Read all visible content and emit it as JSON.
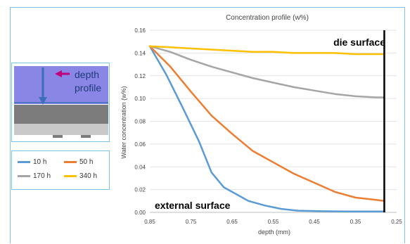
{
  "chart_data": {
    "type": "line",
    "title": "Concentration profile (w%)",
    "xlabel": "depth (mm)",
    "ylabel": "Water concentration (w%)",
    "xlim": [
      0.85,
      0.25
    ],
    "ylim": [
      0,
      0.16
    ],
    "x_ticks": [
      "0.85",
      "0.75",
      "0.65",
      "0.55",
      "0.45",
      "0.35",
      "0.25"
    ],
    "y_ticks": [
      "0.00",
      "0.02",
      "0.04",
      "0.06",
      "0.08",
      "0.10",
      "0.12",
      "0.14",
      "0.16"
    ],
    "grid": "horizontal",
    "annotations": {
      "top": "die surface",
      "bottom": "external surface"
    },
    "series": [
      {
        "name": "10 h",
        "color": "#5b9bd5",
        "x": [
          0.85,
          0.81,
          0.77,
          0.73,
          0.7,
          0.67,
          0.64,
          0.61,
          0.57,
          0.53,
          0.49,
          0.43,
          0.37,
          0.28
        ],
        "y": [
          0.146,
          0.121,
          0.092,
          0.062,
          0.035,
          0.022,
          0.016,
          0.01,
          0.006,
          0.003,
          0.0015,
          0.001,
          0.0008,
          0.0008
        ]
      },
      {
        "name": "50 h",
        "color": "#ed7d31",
        "x": [
          0.85,
          0.8,
          0.75,
          0.7,
          0.65,
          0.6,
          0.55,
          0.5,
          0.45,
          0.4,
          0.35,
          0.3,
          0.28
        ],
        "y": [
          0.146,
          0.128,
          0.106,
          0.085,
          0.069,
          0.054,
          0.044,
          0.034,
          0.026,
          0.018,
          0.013,
          0.011,
          0.01
        ]
      },
      {
        "name": "170 h",
        "color": "#a5a5a5",
        "x": [
          0.85,
          0.8,
          0.75,
          0.7,
          0.65,
          0.6,
          0.55,
          0.5,
          0.45,
          0.4,
          0.35,
          0.3,
          0.28
        ],
        "y": [
          0.146,
          0.141,
          0.134,
          0.128,
          0.123,
          0.118,
          0.114,
          0.11,
          0.107,
          0.104,
          0.102,
          0.101,
          0.101
        ]
      },
      {
        "name": "340 h",
        "color": "#ffc000",
        "x": [
          0.85,
          0.8,
          0.75,
          0.7,
          0.65,
          0.6,
          0.55,
          0.5,
          0.45,
          0.4,
          0.35,
          0.3,
          0.28
        ],
        "y": [
          0.146,
          0.145,
          0.144,
          0.143,
          0.142,
          0.141,
          0.141,
          0.14,
          0.14,
          0.14,
          0.139,
          0.139,
          0.139
        ]
      }
    ]
  },
  "inset": {
    "label_line1": "depth",
    "label_line2": "profile"
  },
  "colors": {
    "accent_border": "#7ec3df",
    "surface_line": "#000000",
    "arrow_blue": "#3d6fb8",
    "arrow_magenta": "#c0007a"
  }
}
